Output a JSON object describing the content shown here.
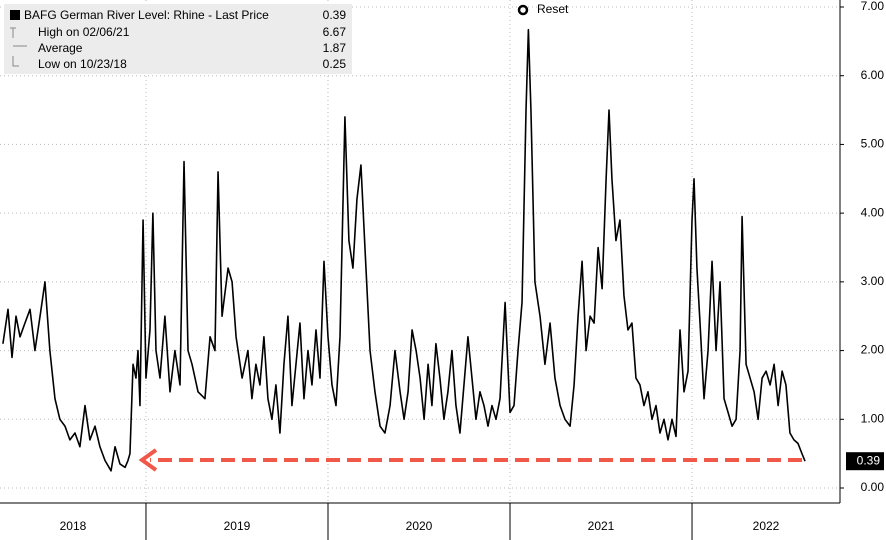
{
  "chart_data": {
    "type": "line",
    "x": [
      2018.214,
      2018.242,
      2018.264,
      2018.286,
      2018.308,
      2018.335,
      2018.363,
      2018.39,
      2018.418,
      2018.445,
      2018.472,
      2018.5,
      2018.527,
      2018.555,
      2018.582,
      2018.61,
      2018.637,
      2018.665,
      2018.692,
      2018.72,
      2018.747,
      2018.775,
      2018.808,
      2018.83,
      2018.857,
      2018.885,
      2018.901,
      2018.912,
      2018.929,
      2018.945,
      2018.956,
      2018.967,
      2018.984,
      2019.0,
      2019.022,
      2019.038,
      2019.055,
      2019.077,
      2019.104,
      2019.132,
      2019.159,
      2019.187,
      2019.209,
      2019.231,
      2019.253,
      2019.286,
      2019.324,
      2019.352,
      2019.379,
      2019.396,
      2019.418,
      2019.451,
      2019.473,
      2019.495,
      2019.528,
      2019.56,
      2019.582,
      2019.604,
      2019.626,
      2019.648,
      2019.67,
      2019.692,
      2019.714,
      2019.736,
      2019.758,
      2019.78,
      2019.802,
      2019.824,
      2019.846,
      2019.868,
      2019.89,
      2019.912,
      2019.934,
      2019.956,
      2019.978,
      2020.0,
      2020.022,
      2020.044,
      2020.066,
      2020.093,
      2020.115,
      2020.137,
      2020.159,
      2020.181,
      2020.203,
      2020.231,
      2020.258,
      2020.286,
      2020.313,
      2020.341,
      2020.368,
      2020.396,
      2020.418,
      2020.44,
      2020.462,
      2020.484,
      2020.506,
      2020.528,
      2020.55,
      2020.571,
      2020.593,
      2020.615,
      2020.637,
      2020.659,
      2020.681,
      2020.703,
      2020.725,
      2020.747,
      2020.769,
      2020.791,
      2020.813,
      2020.835,
      2020.857,
      2020.879,
      2020.901,
      2020.923,
      2020.945,
      2020.973,
      2021.0,
      2021.022,
      2021.044,
      2021.066,
      2021.088,
      2021.101,
      2021.115,
      2021.137,
      2021.165,
      2021.192,
      2021.22,
      2021.247,
      2021.275,
      2021.302,
      2021.33,
      2021.352,
      2021.374,
      2021.396,
      2021.418,
      2021.44,
      2021.462,
      2021.484,
      2021.506,
      2021.528,
      2021.544,
      2021.56,
      2021.582,
      2021.604,
      2021.626,
      2021.648,
      2021.67,
      2021.692,
      2021.714,
      2021.736,
      2021.758,
      2021.78,
      2021.802,
      2021.824,
      2021.846,
      2021.868,
      2021.89,
      2021.912,
      2021.934,
      2021.956,
      2021.978,
      2022.0,
      2022.011,
      2022.027,
      2022.044,
      2022.066,
      2022.088,
      2022.11,
      2022.132,
      2022.154,
      2022.176,
      2022.198,
      2022.22,
      2022.242,
      2022.264,
      2022.275,
      2022.297,
      2022.319,
      2022.341,
      2022.363,
      2022.385,
      2022.407,
      2022.429,
      2022.451,
      2022.473,
      2022.495,
      2022.516,
      2022.538,
      2022.56,
      2022.582,
      2022.604,
      2022.621
    ],
    "series": [
      {
        "name": "BAFG German River Level: Rhine - Last Price",
        "color": "#000000",
        "values": [
          2.1,
          2.6,
          1.9,
          2.5,
          2.2,
          2.4,
          2.6,
          2.0,
          2.5,
          3.0,
          2.0,
          1.3,
          1.0,
          0.9,
          0.7,
          0.8,
          0.6,
          1.2,
          0.7,
          0.9,
          0.6,
          0.4,
          0.25,
          0.6,
          0.35,
          0.3,
          0.4,
          0.5,
          1.8,
          1.6,
          2.0,
          1.2,
          3.9,
          1.6,
          2.3,
          4.0,
          2.0,
          1.6,
          2.5,
          1.4,
          2.0,
          1.5,
          4.75,
          2.0,
          1.8,
          1.4,
          1.3,
          2.2,
          2.0,
          4.6,
          2.5,
          3.2,
          3.0,
          2.2,
          1.6,
          2.0,
          1.3,
          1.8,
          1.5,
          2.2,
          1.3,
          1.0,
          1.5,
          0.8,
          1.8,
          2.5,
          1.2,
          1.8,
          2.4,
          1.3,
          2.0,
          1.5,
          2.3,
          1.6,
          3.3,
          2.2,
          1.5,
          1.2,
          2.2,
          5.4,
          3.6,
          3.2,
          4.2,
          4.7,
          3.5,
          2.0,
          1.4,
          0.9,
          0.8,
          1.2,
          2.0,
          1.4,
          1.0,
          1.4,
          2.3,
          2.0,
          1.6,
          1.0,
          1.8,
          1.2,
          2.1,
          1.6,
          1.0,
          1.4,
          2.0,
          1.2,
          0.8,
          1.5,
          2.2,
          1.6,
          1.0,
          1.4,
          1.2,
          0.9,
          1.2,
          1.0,
          1.3,
          2.7,
          1.1,
          1.2,
          2.0,
          2.7,
          5.5,
          6.67,
          5.5,
          3.0,
          2.5,
          1.8,
          2.4,
          1.6,
          1.2,
          1.0,
          0.9,
          1.5,
          2.5,
          3.3,
          2.0,
          2.5,
          2.4,
          3.5,
          2.9,
          4.5,
          5.5,
          4.5,
          3.6,
          3.9,
          2.8,
          2.3,
          2.4,
          1.6,
          1.5,
          1.2,
          1.4,
          1.0,
          1.2,
          0.8,
          1.0,
          0.7,
          1.0,
          0.75,
          2.3,
          1.4,
          1.7,
          3.9,
          4.5,
          3.2,
          2.4,
          1.3,
          2.0,
          3.3,
          2.0,
          3.0,
          1.3,
          1.1,
          0.9,
          1.0,
          2.0,
          3.95,
          1.8,
          1.6,
          1.4,
          1.0,
          1.6,
          1.7,
          1.5,
          1.8,
          1.2,
          1.7,
          1.5,
          0.8,
          0.7,
          0.65,
          0.5,
          0.39
        ]
      }
    ],
    "last_price": 0.39,
    "stats": [
      {
        "label": "High on 02/06/21",
        "value": 6.67
      },
      {
        "label": "Average",
        "value": 1.87
      },
      {
        "label": "Low on 10/23/18",
        "value": 0.25
      }
    ],
    "button": "Reset",
    "xlim": [
      2018.198,
      2022.813
    ],
    "xticks": [
      2018,
      2019,
      2020,
      2021,
      2022
    ],
    "ylim": [
      0,
      7
    ],
    "yticks": [
      {
        "value": 0,
        "label": "0.00"
      },
      {
        "value": 1,
        "label": "1.00"
      },
      {
        "value": 2,
        "label": "2.00"
      },
      {
        "value": 3,
        "label": "3.00"
      },
      {
        "value": 4,
        "label": "4.00"
      },
      {
        "value": 5,
        "label": "5.00"
      },
      {
        "value": 6,
        "label": "6.00"
      },
      {
        "value": 7,
        "label": "7.00"
      }
    ],
    "grid": true
  }
}
